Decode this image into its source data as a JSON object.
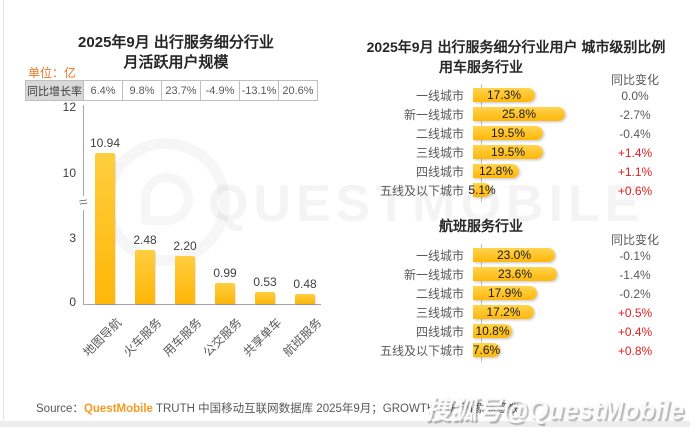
{
  "left_panel": {
    "title_line1": "2025年9月 出行服务细分行业",
    "title_line2": "月活跃用户规模",
    "unit_label": "单位：亿",
    "growth_row_label": "同比增长率",
    "y_ticks": [
      "12",
      "10",
      "3",
      "0"
    ],
    "axis_break_symbol": "≈"
  },
  "right_panel": {
    "title": "2025年9月 出行服务细分行业用户 城市级别比例",
    "change_header": "同比变化"
  },
  "chart_data": [
    {
      "type": "bar",
      "title": "2025年9月 出行服务细分行业 月活跃用户规模",
      "unit": "亿",
      "categories": [
        "地图导航",
        "火车服务",
        "用车服务",
        "公交服务",
        "共享单车",
        "航班服务"
      ],
      "values": [
        10.94,
        2.48,
        2.2,
        0.99,
        0.53,
        0.48
      ],
      "value_labels": [
        "10.94",
        "2.48",
        "2.20",
        "0.99",
        "0.53",
        "0.48"
      ],
      "yoy_growth": [
        "6.4%",
        "9.8%",
        "23.7%",
        "-4.9%",
        "-13.1%",
        "20.6%"
      ],
      "ylabel": "月活跃用户规模(亿)",
      "y_ticks": [
        0,
        3,
        10,
        12
      ],
      "axis_break_between": [
        3,
        10
      ],
      "ylim": [
        0,
        12
      ],
      "grid": false,
      "legend": false
    },
    {
      "type": "bar",
      "orientation": "horizontal",
      "title": "用车服务行业",
      "change_header": "同比变化",
      "categories": [
        "一线城市",
        "新一线城市",
        "二线城市",
        "三线城市",
        "四线城市",
        "五线及以下城市"
      ],
      "values": [
        17.3,
        25.8,
        19.5,
        19.5,
        12.8,
        5.1
      ],
      "labels": [
        "17.3%",
        "25.8%",
        "19.5%",
        "19.5%",
        "12.8%",
        "5.1%"
      ],
      "yoy_change": [
        "0.0%",
        "-2.7%",
        "-0.4%",
        "+1.4%",
        "+1.1%",
        "+0.6%"
      ],
      "xlim": [
        0,
        30
      ],
      "grid": false,
      "legend": false
    },
    {
      "type": "bar",
      "orientation": "horizontal",
      "title": "航班服务行业",
      "change_header": "同比变化",
      "categories": [
        "一线城市",
        "新一线城市",
        "二线城市",
        "三线城市",
        "四线城市",
        "五线及以下城市"
      ],
      "values": [
        23.0,
        23.6,
        17.9,
        17.2,
        10.8,
        7.6
      ],
      "labels": [
        "23.0%",
        "23.6%",
        "17.9%",
        "17.2%",
        "10.8%",
        "7.6%"
      ],
      "yoy_change": [
        "-0.1%",
        "-1.4%",
        "-0.2%",
        "+0.5%",
        "+0.4%",
        "+0.8%"
      ],
      "xlim": [
        0,
        30
      ],
      "grid": false,
      "legend": false
    }
  ],
  "footer": {
    "source_label": "Source：",
    "brand": "QuestMobile",
    "text": "TRUTH 中国移动互联网数据库 2025年9月；GROWTH 用户画像标签数"
  },
  "watermark": {
    "center_text": "QUESTMOBILE",
    "stamp": "搜狐号@QuestMobile"
  },
  "colors": {
    "bar_gold": "#FFC222",
    "bar_gold_dark": "#FFB608",
    "accent_orange": "#E87722",
    "brand_orange": "#F59A23",
    "positive_red": "#E02020",
    "text_gray": "#595959",
    "title_gray": "#262626"
  }
}
